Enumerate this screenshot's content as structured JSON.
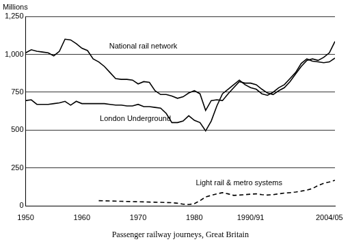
{
  "chart_data": {
    "type": "line",
    "ylabel": "Millions",
    "xlabel": "Passenger railway journeys, Great Britain",
    "x": [
      1950,
      1951,
      1952,
      1953,
      1954,
      1955,
      1956,
      1957,
      1958,
      1959,
      1960,
      1961,
      1962,
      1963,
      1964,
      1965,
      1966,
      1967,
      1968,
      1969,
      1970,
      1971,
      1972,
      1973,
      1974,
      1975,
      1976,
      1977,
      1978,
      1979,
      1980,
      1981,
      1982,
      1983,
      1984,
      1985,
      1986,
      1987,
      1988,
      1989,
      1990,
      1991,
      1992,
      1993,
      1994,
      1995,
      1996,
      1997,
      1998,
      1999,
      2000,
      2001,
      2002,
      2003,
      2004,
      2005
    ],
    "series": [
      {
        "name": "National rail network",
        "color": "#000000",
        "line_style": "solid",
        "values": [
          1010,
          1030,
          1020,
          1015,
          1010,
          990,
          1020,
          1100,
          1095,
          1070,
          1040,
          1025,
          970,
          950,
          920,
          880,
          840,
          835,
          835,
          830,
          805,
          820,
          815,
          760,
          735,
          735,
          725,
          710,
          720,
          745,
          760,
          740,
          630,
          695,
          700,
          695,
          740,
          780,
          820,
          810,
          810,
          800,
          770,
          745,
          735,
          760,
          780,
          820,
          870,
          920,
          960,
          970,
          960,
          980,
          1010,
          1085
        ]
      },
      {
        "name": "London Underground",
        "color": "#000000",
        "line_style": "solid",
        "values": [
          695,
          700,
          670,
          670,
          670,
          675,
          680,
          690,
          665,
          690,
          675,
          675,
          675,
          675,
          675,
          670,
          665,
          665,
          660,
          660,
          670,
          655,
          655,
          650,
          645,
          610,
          550,
          550,
          560,
          595,
          565,
          550,
          495,
          560,
          660,
          740,
          770,
          800,
          830,
          800,
          780,
          770,
          740,
          730,
          750,
          780,
          800,
          840,
          880,
          940,
          970,
          955,
          950,
          945,
          950,
          975
        ]
      },
      {
        "name": "Light rail & metro systems",
        "color": "#000000",
        "line_style": "dashed",
        "values": [
          null,
          null,
          null,
          null,
          null,
          null,
          null,
          null,
          null,
          null,
          null,
          null,
          null,
          35,
          34,
          33,
          32,
          31,
          30,
          29,
          28,
          27,
          26,
          25,
          24,
          23,
          22,
          18,
          12,
          10,
          15,
          35,
          60,
          70,
          80,
          88,
          80,
          70,
          72,
          75,
          78,
          80,
          75,
          72,
          75,
          80,
          85,
          88,
          92,
          98,
          105,
          115,
          135,
          150,
          158,
          170
        ]
      }
    ],
    "xlim": [
      1950,
      2005
    ],
    "xticks": [
      1950,
      1960,
      1970,
      1980,
      {
        "value": 1990,
        "label": "1990/91"
      },
      {
        "value": 2004,
        "label": "2004/05"
      }
    ],
    "ylim": [
      0,
      1250
    ],
    "yticks": [
      0,
      250,
      500,
      750,
      {
        "value": 1000,
        "label": "1,000"
      },
      {
        "value": 1250,
        "label": "1,250"
      }
    ],
    "grid": true
  }
}
